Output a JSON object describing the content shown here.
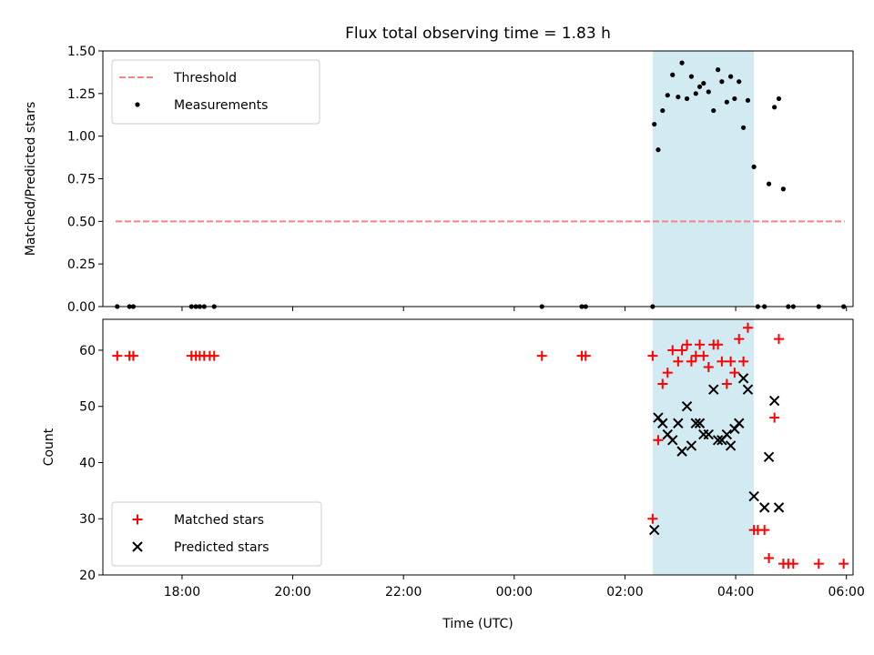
{
  "chart_data": [
    {
      "type": "scatter",
      "title": "Flux total observing time = 1.83 h",
      "xlabel": "",
      "ylabel": "Matched/Predicted stars",
      "xlim": [
        -7.43,
        6.12
      ],
      "ylim": [
        0,
        1.5
      ],
      "yticks": [
        0.0,
        0.25,
        0.5,
        0.75,
        1.0,
        1.25,
        1.5
      ],
      "ytick_labels": [
        "0.00",
        "0.25",
        "0.50",
        "0.75",
        "1.00",
        "1.25",
        "1.50"
      ],
      "highlight_span": {
        "x": [
          2.5,
          4.33
        ],
        "color": "#add8e6"
      },
      "legend_position": "upper-left",
      "threshold": {
        "name": "Threshold",
        "value": 0.5,
        "x": [
          -7.2,
          5.97
        ],
        "color": "#ff7f7f",
        "style": "dashed"
      },
      "series": [
        {
          "name": "Measurements",
          "marker": "dot",
          "color": "#000000",
          "points": [
            [
              -7.17,
              0
            ],
            [
              -6.95,
              0
            ],
            [
              -6.88,
              0
            ],
            [
              -5.83,
              0
            ],
            [
              -5.75,
              0
            ],
            [
              -5.68,
              0
            ],
            [
              -5.6,
              0
            ],
            [
              -5.42,
              0
            ],
            [
              0.5,
              0
            ],
            [
              1.22,
              0
            ],
            [
              1.29,
              0
            ],
            [
              2.5,
              0
            ],
            [
              2.53,
              1.07
            ],
            [
              2.6,
              0.92
            ],
            [
              2.68,
              1.15
            ],
            [
              2.77,
              1.24
            ],
            [
              2.86,
              1.36
            ],
            [
              2.96,
              1.23
            ],
            [
              3.03,
              1.43
            ],
            [
              3.12,
              1.22
            ],
            [
              3.2,
              1.35
            ],
            [
              3.28,
              1.25
            ],
            [
              3.35,
              1.29
            ],
            [
              3.42,
              1.31
            ],
            [
              3.51,
              1.26
            ],
            [
              3.6,
              1.15
            ],
            [
              3.68,
              1.39
            ],
            [
              3.75,
              1.32
            ],
            [
              3.84,
              1.2
            ],
            [
              3.91,
              1.35
            ],
            [
              3.98,
              1.22
            ],
            [
              4.06,
              1.32
            ],
            [
              4.14,
              1.05
            ],
            [
              4.22,
              1.21
            ],
            [
              4.33,
              0.82
            ],
            [
              4.4,
              0
            ],
            [
              4.52,
              0
            ],
            [
              4.6,
              0.72
            ],
            [
              4.7,
              1.17
            ],
            [
              4.78,
              1.22
            ],
            [
              4.86,
              0.69
            ],
            [
              4.95,
              0
            ],
            [
              5.04,
              0
            ],
            [
              5.5,
              0
            ],
            [
              5.95,
              0
            ]
          ]
        }
      ]
    },
    {
      "type": "scatter",
      "title": "",
      "xlabel": "Time (UTC)",
      "ylabel": "Count",
      "xlim": [
        -7.43,
        6.12
      ],
      "ylim": [
        20,
        65.5
      ],
      "yticks": [
        20,
        30,
        40,
        50,
        60
      ],
      "ytick_labels": [
        "20",
        "30",
        "40",
        "50",
        "60"
      ],
      "xticks": [
        -6,
        -4,
        -2,
        0,
        2,
        4,
        6
      ],
      "xtick_labels": [
        "18:00",
        "20:00",
        "22:00",
        "00:00",
        "02:00",
        "04:00",
        "06:00"
      ],
      "highlight_span": {
        "x": [
          2.5,
          4.33
        ],
        "color": "#add8e6"
      },
      "legend_position": "lower-left",
      "series": [
        {
          "name": "Matched stars",
          "marker": "plus",
          "color": "#ff0000",
          "points": [
            [
              -7.17,
              59
            ],
            [
              -6.95,
              59
            ],
            [
              -6.88,
              59
            ],
            [
              -5.83,
              59
            ],
            [
              -5.75,
              59
            ],
            [
              -5.68,
              59
            ],
            [
              -5.6,
              59
            ],
            [
              -5.5,
              59
            ],
            [
              -5.42,
              59
            ],
            [
              0.5,
              59
            ],
            [
              1.22,
              59
            ],
            [
              1.29,
              59
            ],
            [
              2.5,
              59
            ],
            [
              2.5,
              30
            ],
            [
              2.6,
              44
            ],
            [
              2.68,
              54
            ],
            [
              2.77,
              56
            ],
            [
              2.86,
              60
            ],
            [
              2.96,
              58
            ],
            [
              3.03,
              60
            ],
            [
              3.12,
              61
            ],
            [
              3.2,
              58
            ],
            [
              3.28,
              59
            ],
            [
              3.35,
              61
            ],
            [
              3.42,
              59
            ],
            [
              3.51,
              57
            ],
            [
              3.6,
              61
            ],
            [
              3.68,
              61
            ],
            [
              3.75,
              58
            ],
            [
              3.84,
              54
            ],
            [
              3.91,
              58
            ],
            [
              3.98,
              56
            ],
            [
              4.06,
              62
            ],
            [
              4.14,
              58
            ],
            [
              4.22,
              64
            ],
            [
              4.33,
              28
            ],
            [
              4.4,
              28
            ],
            [
              4.52,
              28
            ],
            [
              4.6,
              23
            ],
            [
              4.7,
              48
            ],
            [
              4.78,
              62
            ],
            [
              4.86,
              22
            ],
            [
              4.95,
              22
            ],
            [
              5.04,
              22
            ],
            [
              5.5,
              22
            ],
            [
              5.95,
              22
            ]
          ]
        },
        {
          "name": "Predicted stars",
          "marker": "x",
          "color": "#000000",
          "points": [
            [
              2.53,
              28
            ],
            [
              2.6,
              48
            ],
            [
              2.68,
              47
            ],
            [
              2.77,
              45
            ],
            [
              2.86,
              44
            ],
            [
              2.96,
              47
            ],
            [
              3.03,
              42
            ],
            [
              3.12,
              50
            ],
            [
              3.2,
              43
            ],
            [
              3.28,
              47
            ],
            [
              3.35,
              47
            ],
            [
              3.42,
              45
            ],
            [
              3.51,
              45
            ],
            [
              3.6,
              53
            ],
            [
              3.68,
              44
            ],
            [
              3.75,
              44
            ],
            [
              3.84,
              45
            ],
            [
              3.91,
              43
            ],
            [
              3.98,
              46
            ],
            [
              4.06,
              47
            ],
            [
              4.14,
              55
            ],
            [
              4.22,
              53
            ],
            [
              4.33,
              34
            ],
            [
              4.52,
              32
            ],
            [
              4.6,
              41
            ],
            [
              4.7,
              51
            ],
            [
              4.78,
              32
            ]
          ]
        }
      ]
    }
  ]
}
